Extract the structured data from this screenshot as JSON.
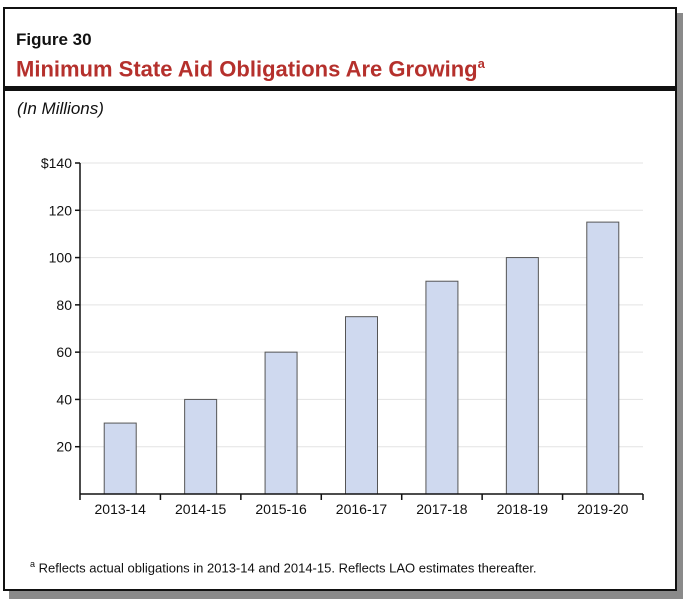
{
  "figure_label": "Figure 30",
  "title": "Minimum State Aid Obligations Are Growing",
  "title_footnote_marker": "a",
  "units": "(In Millions)",
  "footnote": {
    "marker": "a",
    "text": "Reflects actual obligations in 2013-14 and 2014-15. Reflects LAO estimates thereafter."
  },
  "colors": {
    "title": "#b5302c",
    "bar_fill": "#cfd9ef",
    "bar_stroke": "#555555"
  },
  "chart_data": {
    "type": "bar",
    "categories": [
      "2013-14",
      "2014-15",
      "2015-16",
      "2016-17",
      "2017-18",
      "2018-19",
      "2019-20"
    ],
    "values": [
      30,
      40,
      60,
      75,
      90,
      100,
      115
    ],
    "ylim": [
      0,
      140
    ],
    "yticks": [
      20,
      40,
      60,
      80,
      100,
      120,
      140
    ],
    "ytick_labels": [
      "20",
      "40",
      "60",
      "80",
      "100",
      "120",
      "$140"
    ],
    "grid": true
  }
}
